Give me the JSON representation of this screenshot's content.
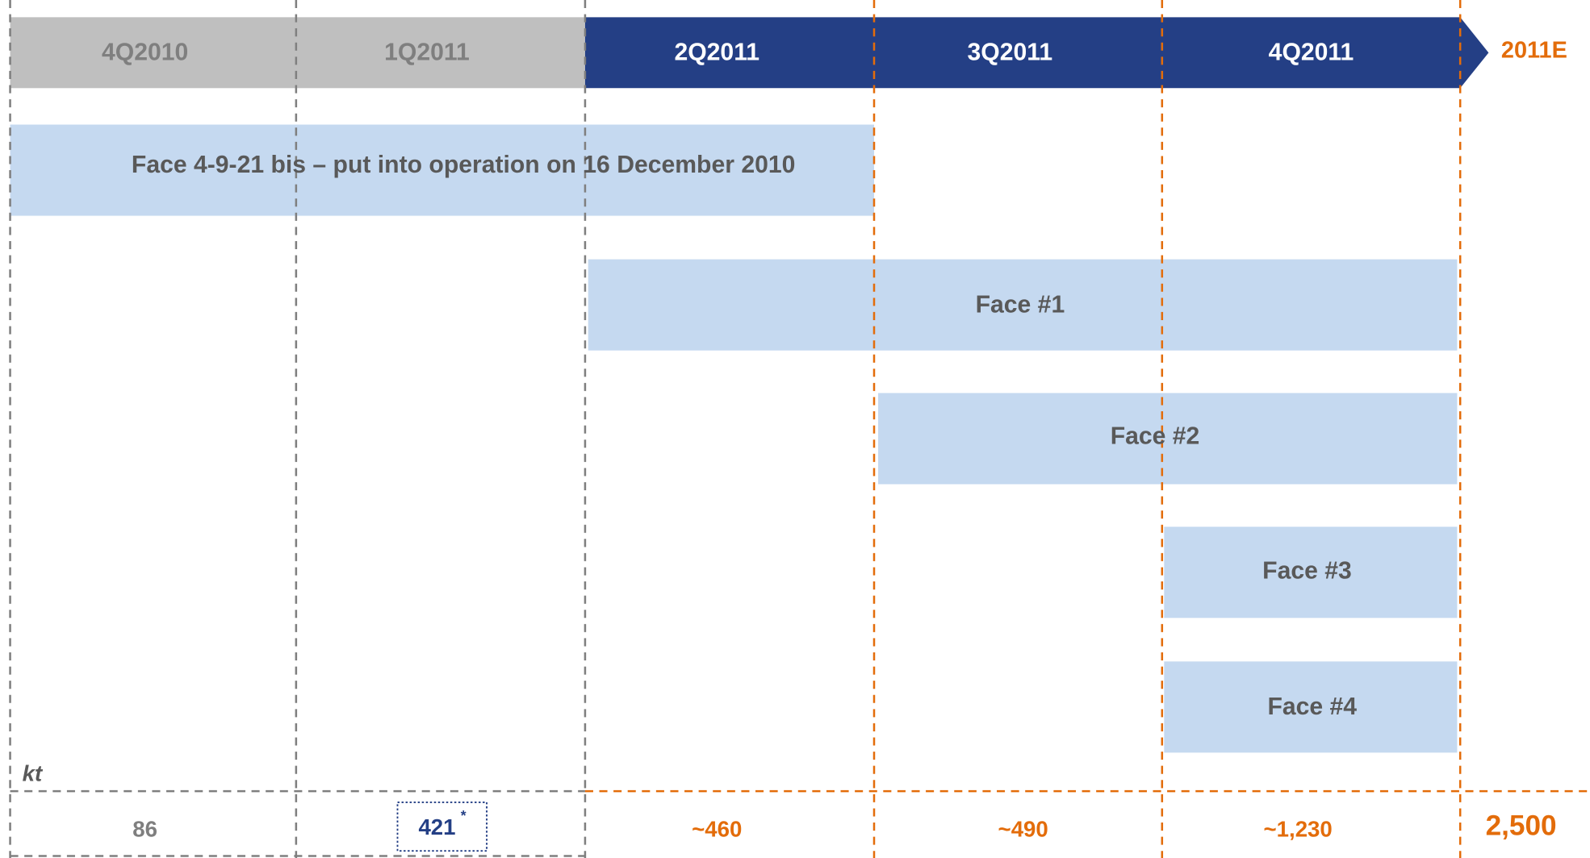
{
  "periods": [
    "4Q2010",
    "1Q2011",
    "2Q2011",
    "3Q2011",
    "4Q2011"
  ],
  "summary_label": "2011E",
  "tasks": [
    {
      "label": "Face 4-9-21 bis – put into operation on 16 December 2010"
    },
    {
      "label": "Face #1"
    },
    {
      "label": "Face #2"
    },
    {
      "label": "Face #3"
    },
    {
      "label": "Face #4"
    }
  ],
  "unit": "kt",
  "volumes": [
    "86",
    "421",
    "~460",
    "~490",
    "~1,230"
  ],
  "footnote_mark": "*",
  "total": "2,500"
}
